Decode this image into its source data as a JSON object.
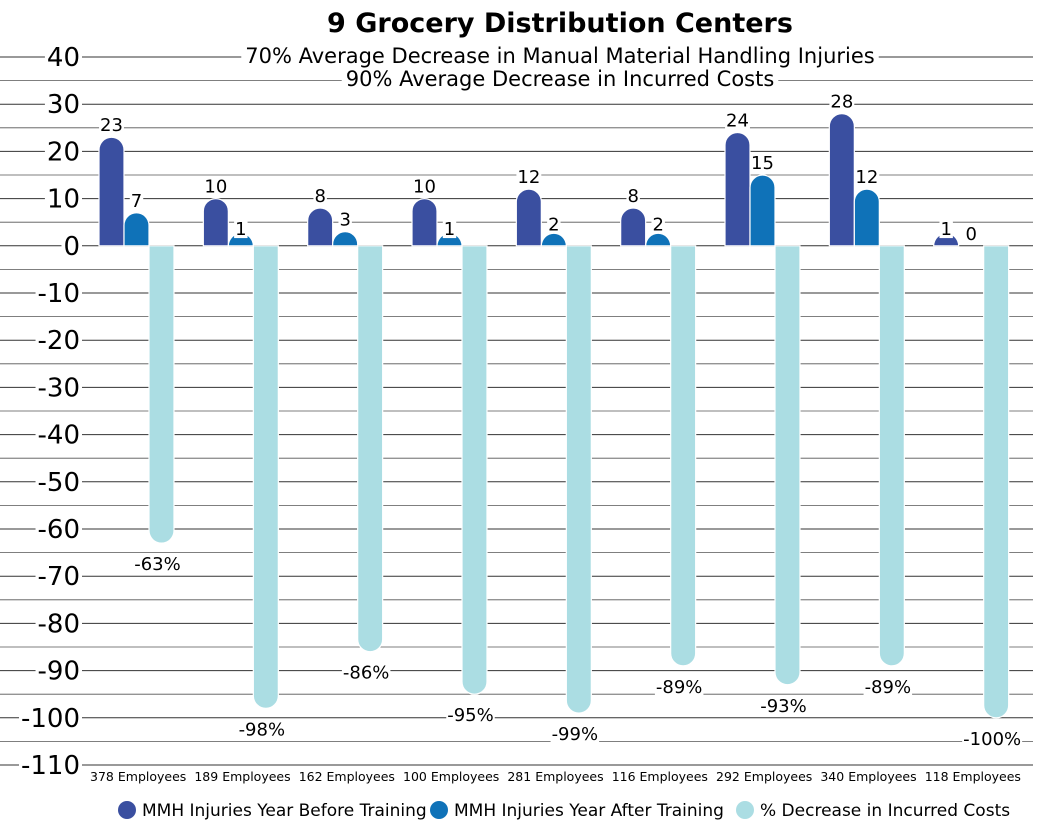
{
  "chart_data": {
    "type": "bar",
    "title": "9 Grocery Distribution Centers",
    "subtitles": [
      "70% Average Decrease in Manual Material Handling Injuries",
      "90% Average Decrease in Incurred Costs"
    ],
    "categories": [
      "378 Employees",
      "189 Employees",
      "162 Employees",
      "100 Employees",
      "281 Employees",
      "116 Employees",
      "292 Employees",
      "340 Employees",
      "118 Employees"
    ],
    "series": [
      {
        "name": "MMH Injuries Year Before Training",
        "color": "#3a4fa0",
        "values": [
          23,
          10,
          8,
          10,
          12,
          8,
          24,
          28,
          1
        ],
        "labels": [
          "23",
          "10",
          "8",
          "10",
          "12",
          "8",
          "24",
          "28",
          "1"
        ]
      },
      {
        "name": "MMH Injuries Year After Training",
        "color": "#0f72b8",
        "values": [
          7,
          1,
          3,
          1,
          2,
          2,
          15,
          12,
          0
        ],
        "labels": [
          "7",
          "1",
          "3",
          "1",
          "2",
          "2",
          "15",
          "12",
          "0"
        ]
      },
      {
        "name": "% Decrease in Incurred Costs",
        "color": "#abdde3",
        "values": [
          -63,
          -98,
          -86,
          -95,
          -99,
          -89,
          -93,
          -89,
          -100
        ],
        "labels": [
          "-63%",
          "-98%",
          "-86%",
          "-95%",
          "-99%",
          "-89%",
          "-93%",
          "-89%",
          "-100%"
        ]
      }
    ],
    "ylim": [
      -110,
      40
    ],
    "yticks": [
      40,
      30,
      20,
      10,
      0,
      -10,
      -20,
      -30,
      -40,
      -50,
      -60,
      -70,
      -80,
      -90,
      -100,
      -110
    ],
    "ytick_labels": [
      "40",
      "30",
      "20",
      "10",
      "0",
      "-10",
      "-20",
      "-30",
      "-40",
      "-50",
      "-60",
      "-70",
      "-80",
      "-90",
      "-100",
      "-110"
    ],
    "grid": true,
    "legend_position": "bottom"
  }
}
